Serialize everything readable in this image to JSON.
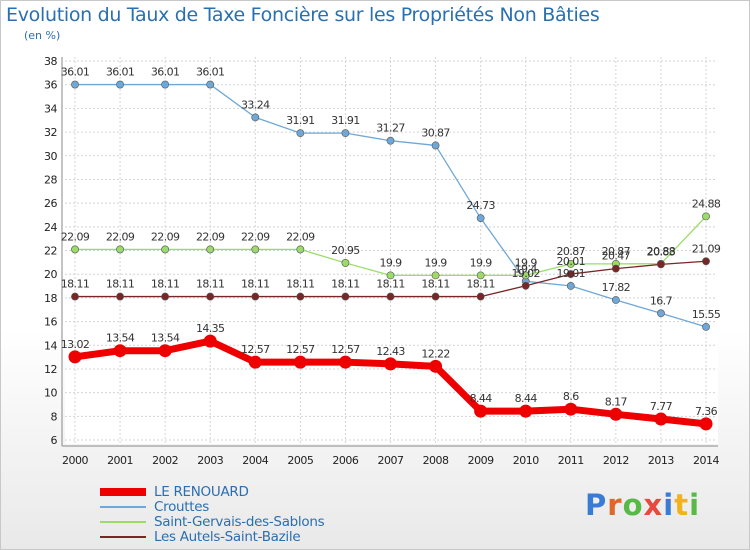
{
  "title": "Evolution du Taux de Taxe Foncière sur les Propriétés Non Bâties",
  "unit_label": "(en %)",
  "logo": {
    "text": "Proxiti",
    "colors": [
      "#3a7bd5",
      "#e0672a",
      "#58b947",
      "#e94a3f",
      "#3a7bd5",
      "#f2b21b",
      "#58b947"
    ]
  },
  "chart_data": {
    "type": "line",
    "x": [
      2000,
      2001,
      2002,
      2003,
      2004,
      2005,
      2006,
      2007,
      2008,
      2009,
      2010,
      2011,
      2012,
      2013,
      2014
    ],
    "ylim": [
      6,
      38
    ],
    "yticks": [
      6,
      8,
      10,
      12,
      14,
      16,
      18,
      20,
      22,
      24,
      26,
      28,
      30,
      32,
      34,
      36,
      38
    ],
    "grid": true,
    "legend_position": "bottom-left",
    "series": [
      {
        "name": "LE RENOUARD",
        "color": "#ee0000",
        "values": [
          13.02,
          13.54,
          13.54,
          14.35,
          12.57,
          12.57,
          12.57,
          12.43,
          12.22,
          8.44,
          8.44,
          8.6,
          8.17,
          7.77,
          7.36
        ],
        "labels": [
          "13.02",
          "13.54",
          "13.54",
          "14.35",
          "12.57",
          "12.57",
          "12.57",
          "12.43",
          "12.22",
          "8.44",
          "8.44",
          "8.6",
          "8.17",
          "7.77",
          "7.36"
        ]
      },
      {
        "name": "Crouttes",
        "color": "#6fa8d6",
        "values": [
          36.01,
          36.01,
          36.01,
          36.01,
          33.24,
          31.91,
          31.91,
          31.27,
          30.87,
          24.73,
          19.4,
          19.01,
          17.82,
          16.7,
          15.55
        ],
        "labels": [
          "36.01",
          "36.01",
          "36.01",
          "36.01",
          "33.24",
          "31.91",
          "31.91",
          "31.27",
          "30.87",
          "24.73",
          "19.4",
          "19.01",
          "17.82",
          "16.7",
          "15.55"
        ]
      },
      {
        "name": "Saint-Gervais-des-Sablons",
        "color": "#99dd66",
        "values": [
          22.09,
          22.09,
          22.09,
          22.09,
          22.09,
          22.09,
          20.95,
          19.9,
          19.9,
          19.9,
          19.9,
          20.87,
          20.87,
          20.88,
          24.88
        ],
        "labels": [
          "22.09",
          "22.09",
          "22.09",
          "22.09",
          "22.09",
          "22.09",
          "20.95",
          "19.9",
          "19.9",
          "19.9",
          "19.9",
          "20.87",
          "20.87",
          "20.88",
          "24.88"
        ]
      },
      {
        "name": "Les Autels-Saint-Bazile",
        "color": "#7a2626",
        "values": [
          18.11,
          18.11,
          18.11,
          18.11,
          18.11,
          18.11,
          18.11,
          18.11,
          18.11,
          18.11,
          19.02,
          20.01,
          20.47,
          20.83,
          21.09
        ],
        "labels": [
          "18.11",
          "18.11",
          "18.11",
          "18.11",
          "18.11",
          "18.11",
          "18.11",
          "18.11",
          "18.11",
          "18.11",
          "19.02",
          "20.01",
          "20.47",
          "20.83",
          "21.09"
        ]
      }
    ]
  }
}
